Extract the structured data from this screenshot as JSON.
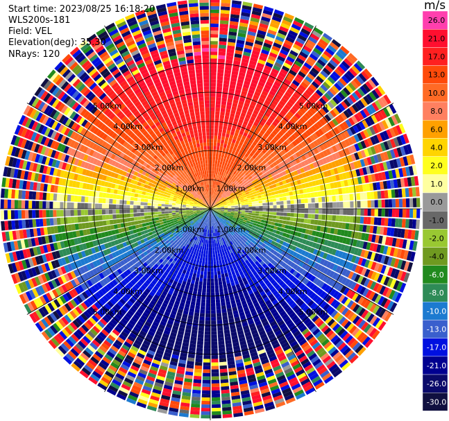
{
  "header": {
    "start_time": "Start time: 2023/08/25 16:18:20",
    "instrument": "WLS200s-181",
    "field": "Field: VEL",
    "elevation": "Elevation(deg): 35.30",
    "nrays": "NRays: 120"
  },
  "colorbar": {
    "unit": "m/s",
    "bins": [
      {
        "label": "26.0",
        "color": "#ff3fae"
      },
      {
        "label": "21.0",
        "color": "#ff0f2f"
      },
      {
        "label": "17.0",
        "color": "#ff2020"
      },
      {
        "label": "13.0",
        "color": "#ff4a0a"
      },
      {
        "label": "10.0",
        "color": "#ff6a25"
      },
      {
        "label": "8.0",
        "color": "#ff8060"
      },
      {
        "label": "6.0",
        "color": "#ffa000"
      },
      {
        "label": "4.0",
        "color": "#ffd400"
      },
      {
        "label": "2.0",
        "color": "#ffff1e"
      },
      {
        "label": "1.0",
        "color": "#ffffa0"
      },
      {
        "label": "0.0",
        "color": "#9a9a9a"
      },
      {
        "label": "-1.0",
        "color": "#686868"
      },
      {
        "label": "-2.0",
        "color": "#99c832"
      },
      {
        "label": "-4.0",
        "color": "#6f9a20"
      },
      {
        "label": "-6.0",
        "color": "#218a1e"
      },
      {
        "label": "-8.0",
        "color": "#2e8b57"
      },
      {
        "label": "-10.0",
        "color": "#1c7ad0"
      },
      {
        "label": "-13.0",
        "color": "#3a5fcd"
      },
      {
        "label": "-17.0",
        "color": "#0010e0"
      },
      {
        "label": "-21.0",
        "color": "#000090"
      },
      {
        "label": "-26.0",
        "color": "#0a0a6a"
      },
      {
        "label": "-30.0",
        "color": "#101040"
      }
    ]
  },
  "chart_data": {
    "type": "ppi",
    "title": "",
    "field": "VEL",
    "units": "m/s",
    "nrays": 120,
    "range_ring_labels": [
      "1.00km",
      "2.00km",
      "3.00km",
      "4.00km",
      "5.00km"
    ],
    "range_rings_km": [
      1,
      2,
      3,
      4,
      5
    ],
    "max_range_km": 7.2,
    "spokes_deg": [
      0,
      30,
      60,
      90,
      120,
      150,
      180,
      210,
      240,
      270,
      300,
      330
    ],
    "color_scale_ticks": [
      26.0,
      21.0,
      17.0,
      13.0,
      10.0,
      8.0,
      6.0,
      4.0,
      2.0,
      1.0,
      0.0,
      -1.0,
      -2.0,
      -4.0,
      -6.0,
      -8.0,
      -10.0,
      -13.0,
      -17.0,
      -21.0,
      -26.0,
      -30.0
    ],
    "wind_pattern": {
      "north_velocity_ms": 11,
      "south_velocity_ms": -11,
      "zero_line_azimuth_deg": 95,
      "noise_begins_km": 5.0
    }
  }
}
